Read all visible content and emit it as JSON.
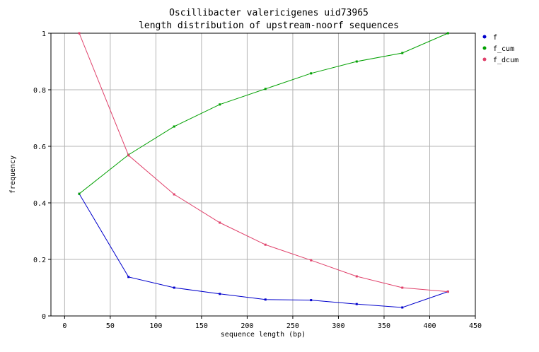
{
  "chart_data": {
    "type": "line",
    "title": "Oscillibacter valericigenes uid73965",
    "subtitle": "length distribution of upstream-noorf sequences",
    "xlabel": "sequence length (bp)",
    "ylabel": "frequency",
    "xlim": [
      -15,
      450
    ],
    "ylim": [
      0,
      1
    ],
    "xticks": [
      0,
      50,
      100,
      150,
      200,
      250,
      300,
      350,
      400,
      450
    ],
    "yticks": [
      0,
      0.2,
      0.4,
      0.6,
      0.8,
      1
    ],
    "ytick_labels": [
      "0",
      "0.2",
      "0.4",
      "0.6",
      "0.8",
      "1"
    ],
    "grid": true,
    "legend_position": "top-right",
    "x": [
      16,
      70,
      120,
      170,
      220,
      270,
      320,
      370,
      420
    ],
    "series": [
      {
        "name": "f",
        "color": "#0000cc",
        "values": [
          0.432,
          0.138,
          0.1,
          0.078,
          0.058,
          0.056,
          0.042,
          0.03,
          0.086
        ]
      },
      {
        "name": "f_cum",
        "color": "#00a000",
        "values": [
          0.432,
          0.57,
          0.67,
          0.748,
          0.803,
          0.858,
          0.9,
          0.93,
          1.0
        ]
      },
      {
        "name": "f_dcum",
        "color": "#e0406a",
        "values": [
          1.0,
          0.568,
          0.43,
          0.33,
          0.252,
          0.197,
          0.14,
          0.1,
          0.086
        ]
      }
    ]
  }
}
